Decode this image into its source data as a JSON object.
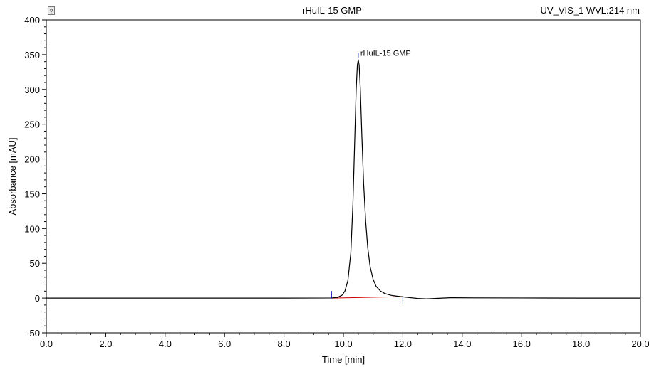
{
  "header": {
    "title": "rHuIL-15 GMP",
    "channel": "UV_VIS_1 WVL:214 nm"
  },
  "chart_data": {
    "type": "line",
    "title": "rHuIL-15 GMP",
    "xlabel": "Time [min]",
    "ylabel": "Absorbance [mAU]",
    "xlim": [
      0,
      20
    ],
    "ylim": [
      -50,
      400
    ],
    "x_ticks": [
      "0.0",
      "2.0",
      "4.0",
      "6.0",
      "8.0",
      "10.0",
      "12.0",
      "14.0",
      "16.0",
      "18.0",
      "20.0"
    ],
    "y_ticks": [
      "-50",
      "0",
      "50",
      "100",
      "150",
      "200",
      "250",
      "300",
      "350",
      "400"
    ],
    "series": [
      {
        "color": "#000000",
        "x": [
          0.0,
          4.0,
          8.0,
          9.6,
          9.8,
          9.95,
          10.05,
          10.15,
          10.25,
          10.32,
          10.38,
          10.43,
          10.47,
          10.5,
          10.53,
          10.57,
          10.62,
          10.68,
          10.75,
          10.82,
          10.9,
          11.0,
          11.1,
          11.25,
          11.4,
          11.6,
          11.8,
          12.0,
          12.2,
          12.5,
          12.8,
          13.2,
          13.6,
          14.5,
          16.0,
          18.0,
          20.0
        ],
        "y": [
          0,
          0,
          0,
          0.2,
          1,
          4,
          10,
          25,
          65,
          135,
          225,
          300,
          335,
          343,
          335,
          300,
          235,
          165,
          110,
          72,
          45,
          27,
          17,
          10,
          6.5,
          4,
          2.8,
          1.8,
          0.8,
          -0.5,
          -1.2,
          -0.3,
          0.5,
          0.3,
          0.2,
          0,
          0
        ]
      }
    ],
    "baseline": {
      "color": "#cc0000",
      "x": [
        9.6,
        12.0
      ],
      "y": [
        0,
        2
      ]
    },
    "peak": {
      "label": "rHuIL-15 GMP",
      "x": 10.5,
      "y": 343
    },
    "integration_marks": [
      {
        "x": 9.6,
        "y": 0,
        "direction": "up",
        "color": "#0000cc"
      },
      {
        "x": 12.0,
        "y": 2,
        "direction": "down",
        "color": "#0000cc"
      }
    ],
    "grid": false,
    "legend": "none"
  }
}
